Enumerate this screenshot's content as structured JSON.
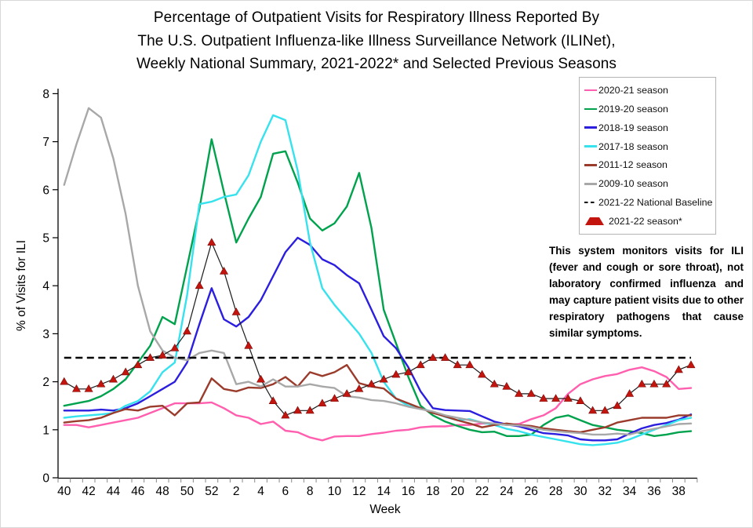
{
  "title": {
    "lines": [
      "Percentage of Outpatient Visits for Respiratory Illness Reported By",
      "The U.S. Outpatient Influenza-like Illness Surveillance Network (ILINet),",
      "Weekly National Summary, 2021-2022* and Selected Previous Seasons"
    ]
  },
  "annotation": {
    "text": "This system monitors visits for ILI (fever and cough or sore throat), not laboratory confirmed influenza and may capture patient visits due to other respiratory pathogens that cause similar symptoms."
  },
  "chart_data": {
    "type": "line",
    "xlabel": "Week",
    "ylabel": "% of Visits for ILI",
    "ylim": [
      0,
      8
    ],
    "yticks": [
      0,
      1,
      2,
      3,
      4,
      5,
      6,
      7,
      8
    ],
    "grid": false,
    "legend_position": "top-right",
    "x_labels_every": 2,
    "categories": [
      "40",
      "41",
      "42",
      "43",
      "44",
      "45",
      "46",
      "47",
      "48",
      "49",
      "50",
      "51",
      "52",
      "1",
      "2",
      "3",
      "4",
      "5",
      "6",
      "7",
      "8",
      "9",
      "10",
      "11",
      "12",
      "13",
      "14",
      "15",
      "16",
      "17",
      "18",
      "19",
      "20",
      "21",
      "22",
      "23",
      "24",
      "25",
      "26",
      "27",
      "28",
      "29",
      "30",
      "31",
      "32",
      "33",
      "34",
      "35",
      "36",
      "37",
      "38",
      "39"
    ],
    "series": [
      {
        "name": "2020-21 season",
        "color": "#FF5FAE",
        "style": "solid",
        "values": [
          1.1,
          1.1,
          1.05,
          1.1,
          1.15,
          1.2,
          1.25,
          1.35,
          1.45,
          1.55,
          1.55,
          1.55,
          1.57,
          1.45,
          1.3,
          1.25,
          1.12,
          1.17,
          0.98,
          0.95,
          0.84,
          0.78,
          0.86,
          0.87,
          0.87,
          0.91,
          0.94,
          0.98,
          1.0,
          1.05,
          1.07,
          1.07,
          1.1,
          1.1,
          1.13,
          1.13,
          1.1,
          1.12,
          1.22,
          1.3,
          1.45,
          1.75,
          1.95,
          2.05,
          2.12,
          2.16,
          2.25,
          2.3,
          2.22,
          2.1,
          1.85,
          1.87
        ]
      },
      {
        "name": "2019-20 season",
        "color": "#00A24D",
        "style": "solid",
        "values": [
          1.5,
          1.55,
          1.6,
          1.7,
          1.85,
          2.05,
          2.4,
          2.75,
          3.35,
          3.2,
          4.4,
          5.6,
          7.05,
          5.95,
          4.9,
          5.4,
          5.85,
          6.75,
          6.8,
          6.15,
          5.4,
          5.15,
          5.3,
          5.65,
          6.35,
          5.2,
          3.5,
          2.8,
          2.1,
          1.5,
          1.3,
          1.17,
          1.08,
          1.0,
          0.95,
          0.96,
          0.87,
          0.87,
          0.9,
          1.1,
          1.25,
          1.3,
          1.2,
          1.1,
          1.05,
          1.0,
          0.97,
          0.93,
          0.87,
          0.9,
          0.95,
          0.97
        ]
      },
      {
        "name": "2018-19 season",
        "color": "#2B1EDF",
        "style": "solid",
        "values": [
          1.4,
          1.4,
          1.4,
          1.42,
          1.4,
          1.45,
          1.55,
          1.7,
          1.85,
          2.0,
          2.4,
          3.2,
          3.95,
          3.3,
          3.15,
          3.35,
          3.7,
          4.2,
          4.7,
          5.0,
          4.85,
          4.55,
          4.43,
          4.22,
          4.05,
          3.5,
          2.95,
          2.7,
          2.3,
          1.8,
          1.45,
          1.41,
          1.4,
          1.39,
          1.28,
          1.17,
          1.11,
          1.07,
          1.0,
          0.93,
          0.91,
          0.88,
          0.8,
          0.78,
          0.78,
          0.8,
          0.92,
          1.03,
          1.1,
          1.14,
          1.21,
          1.32
        ]
      },
      {
        "name": "2017-18 season",
        "color": "#35E2EE",
        "style": "solid",
        "values": [
          1.25,
          1.28,
          1.3,
          1.32,
          1.35,
          1.5,
          1.6,
          1.8,
          2.2,
          2.4,
          3.8,
          5.7,
          5.75,
          5.85,
          5.9,
          6.3,
          7.0,
          7.55,
          7.45,
          6.4,
          4.9,
          3.95,
          3.6,
          3.3,
          3.0,
          2.6,
          2.0,
          1.65,
          1.5,
          1.45,
          1.37,
          1.27,
          1.2,
          1.22,
          1.15,
          1.1,
          1.02,
          0.97,
          0.9,
          0.85,
          0.8,
          0.75,
          0.7,
          0.68,
          0.7,
          0.73,
          0.8,
          0.9,
          1.0,
          1.1,
          1.2,
          1.25
        ]
      },
      {
        "name": "2011-12 season",
        "color": "#9A3B2C",
        "style": "solid",
        "values": [
          1.15,
          1.18,
          1.2,
          1.25,
          1.35,
          1.43,
          1.4,
          1.48,
          1.5,
          1.3,
          1.55,
          1.57,
          2.07,
          1.85,
          1.8,
          1.88,
          1.87,
          1.95,
          2.1,
          1.9,
          2.2,
          2.12,
          2.2,
          2.35,
          1.97,
          1.9,
          1.86,
          1.65,
          1.55,
          1.45,
          1.35,
          1.28,
          1.2,
          1.13,
          1.05,
          1.1,
          1.13,
          1.1,
          1.08,
          1.03,
          1.0,
          0.97,
          0.95,
          1.0,
          1.05,
          1.15,
          1.2,
          1.25,
          1.25,
          1.25,
          1.3,
          1.3
        ]
      },
      {
        "name": "2009-10 season",
        "color": "#A8A8A8",
        "style": "solid",
        "values": [
          6.1,
          6.95,
          7.7,
          7.5,
          6.65,
          5.5,
          4.0,
          3.05,
          2.65,
          2.5,
          2.45,
          2.6,
          2.65,
          2.6,
          1.95,
          2.0,
          1.9,
          2.05,
          1.9,
          1.9,
          1.95,
          1.9,
          1.87,
          1.7,
          1.67,
          1.62,
          1.6,
          1.55,
          1.48,
          1.43,
          1.38,
          1.3,
          1.25,
          1.2,
          1.15,
          1.13,
          1.1,
          1.09,
          1.05,
          1.0,
          0.97,
          0.95,
          0.93,
          0.9,
          0.9,
          0.92,
          0.9,
          0.97,
          1.02,
          1.07,
          1.12,
          1.13
        ]
      },
      {
        "name": "2021-22 National Baseline",
        "color": "#000000",
        "style": "dashed-baseline",
        "baseline_value": 2.5
      },
      {
        "name": "2021-22 season*",
        "color": "#C3150E",
        "style": "triangle-marker",
        "line_color": "#1A1A1A",
        "values": [
          2.0,
          1.85,
          1.85,
          1.95,
          2.05,
          2.2,
          2.35,
          2.5,
          2.55,
          2.7,
          3.05,
          4.0,
          4.9,
          4.3,
          3.45,
          2.75,
          2.05,
          1.6,
          1.3,
          1.4,
          1.4,
          1.55,
          1.65,
          1.75,
          1.85,
          1.95,
          2.05,
          2.15,
          2.2,
          2.35,
          2.5,
          2.5,
          2.35,
          2.35,
          2.15,
          1.95,
          1.9,
          1.75,
          1.75,
          1.65,
          1.65,
          1.65,
          1.6,
          1.4,
          1.4,
          1.5,
          1.75,
          1.95,
          1.95,
          1.95,
          2.25,
          2.35
        ]
      }
    ]
  }
}
